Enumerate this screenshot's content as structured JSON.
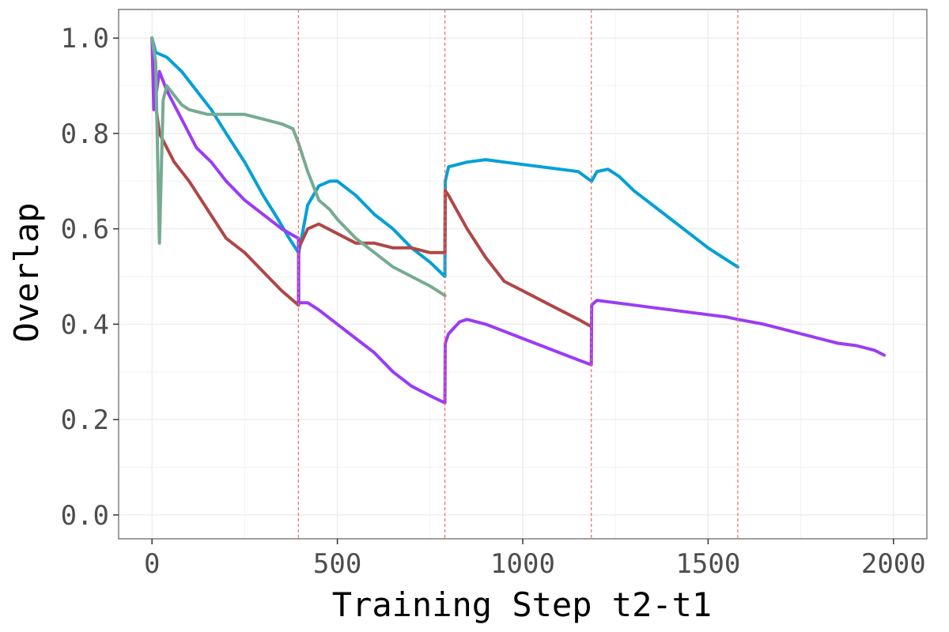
{
  "chart_data": {
    "type": "line",
    "title": "",
    "xlabel": "Training Step t2-t1",
    "ylabel": "Overlap",
    "xlim": [
      -90,
      2090
    ],
    "ylim": [
      -0.05,
      1.06
    ],
    "x_ticks": [
      0,
      500,
      1000,
      1500,
      2000
    ],
    "y_ticks": [
      0.0,
      0.2,
      0.4,
      0.6,
      0.8,
      1.0
    ],
    "x_tick_labels": [
      "0",
      "500",
      "1000",
      "1500",
      "2000"
    ],
    "y_tick_labels": [
      "0.0",
      "0.2",
      "0.4",
      "0.6",
      "0.8",
      "1.0"
    ],
    "grid": true,
    "legend": "none",
    "vlines": [
      395,
      790,
      1185,
      1580
    ],
    "vline_color": "#f26b6b",
    "series": [
      {
        "color": "#00a0d6",
        "x": [
          0,
          10,
          40,
          80,
          120,
          160,
          200,
          250,
          300,
          340,
          370,
          395,
          396,
          420,
          450,
          480,
          500,
          550,
          600,
          650,
          700,
          750,
          790,
          791,
          800,
          850,
          900,
          950,
          1000,
          1050,
          1100,
          1150,
          1185,
          1186,
          1200,
          1230,
          1260,
          1300,
          1350,
          1400,
          1450,
          1500,
          1550,
          1580
        ],
        "y": [
          1.0,
          0.97,
          0.96,
          0.93,
          0.89,
          0.85,
          0.8,
          0.74,
          0.67,
          0.62,
          0.58,
          0.55,
          0.55,
          0.65,
          0.69,
          0.7,
          0.7,
          0.67,
          0.63,
          0.6,
          0.56,
          0.53,
          0.5,
          0.7,
          0.73,
          0.74,
          0.745,
          0.74,
          0.735,
          0.73,
          0.725,
          0.72,
          0.7,
          0.7,
          0.72,
          0.725,
          0.71,
          0.68,
          0.65,
          0.62,
          0.59,
          0.56,
          0.535,
          0.52
        ]
      },
      {
        "color": "#b04646",
        "x": [
          0,
          10,
          20,
          40,
          60,
          80,
          100,
          150,
          200,
          250,
          300,
          350,
          395,
          396,
          420,
          450,
          500,
          550,
          600,
          650,
          700,
          750,
          790,
          791,
          800,
          850,
          900,
          950,
          1000,
          1050,
          1100,
          1150,
          1185
        ],
        "y": [
          1.0,
          0.86,
          0.8,
          0.77,
          0.74,
          0.72,
          0.7,
          0.64,
          0.58,
          0.55,
          0.51,
          0.47,
          0.44,
          0.56,
          0.6,
          0.61,
          0.59,
          0.57,
          0.57,
          0.56,
          0.56,
          0.55,
          0.55,
          0.68,
          0.67,
          0.6,
          0.54,
          0.49,
          0.47,
          0.45,
          0.43,
          0.41,
          0.395
        ]
      },
      {
        "color": "#9a3cf5",
        "x": [
          0,
          5,
          20,
          40,
          80,
          120,
          160,
          200,
          250,
          300,
          350,
          395,
          396,
          420,
          450,
          500,
          550,
          600,
          650,
          700,
          750,
          790,
          791,
          800,
          830,
          850,
          900,
          950,
          1000,
          1050,
          1100,
          1150,
          1185,
          1186,
          1200,
          1250,
          1300,
          1350,
          1400,
          1450,
          1500,
          1550,
          1580,
          1650,
          1700,
          1750,
          1800,
          1850,
          1900,
          1950,
          1975
        ],
        "y": [
          1.0,
          0.85,
          0.93,
          0.89,
          0.83,
          0.77,
          0.74,
          0.7,
          0.66,
          0.63,
          0.6,
          0.58,
          0.445,
          0.445,
          0.43,
          0.4,
          0.37,
          0.34,
          0.3,
          0.27,
          0.25,
          0.235,
          0.36,
          0.38,
          0.405,
          0.41,
          0.4,
          0.385,
          0.37,
          0.355,
          0.34,
          0.325,
          0.315,
          0.44,
          0.45,
          0.445,
          0.44,
          0.435,
          0.43,
          0.425,
          0.42,
          0.415,
          0.41,
          0.4,
          0.39,
          0.38,
          0.37,
          0.36,
          0.355,
          0.345,
          0.335
        ]
      },
      {
        "color": "#76ab91",
        "x": [
          0,
          10,
          20,
          30,
          40,
          60,
          80,
          100,
          150,
          200,
          250,
          300,
          350,
          380,
          395,
          420,
          450,
          480,
          500,
          550,
          600,
          650,
          700,
          750,
          780,
          790
        ],
        "y": [
          1.0,
          0.95,
          0.57,
          0.87,
          0.9,
          0.88,
          0.86,
          0.85,
          0.84,
          0.84,
          0.84,
          0.83,
          0.82,
          0.81,
          0.78,
          0.72,
          0.66,
          0.64,
          0.62,
          0.58,
          0.55,
          0.52,
          0.5,
          0.48,
          0.465,
          0.46
        ]
      }
    ]
  }
}
